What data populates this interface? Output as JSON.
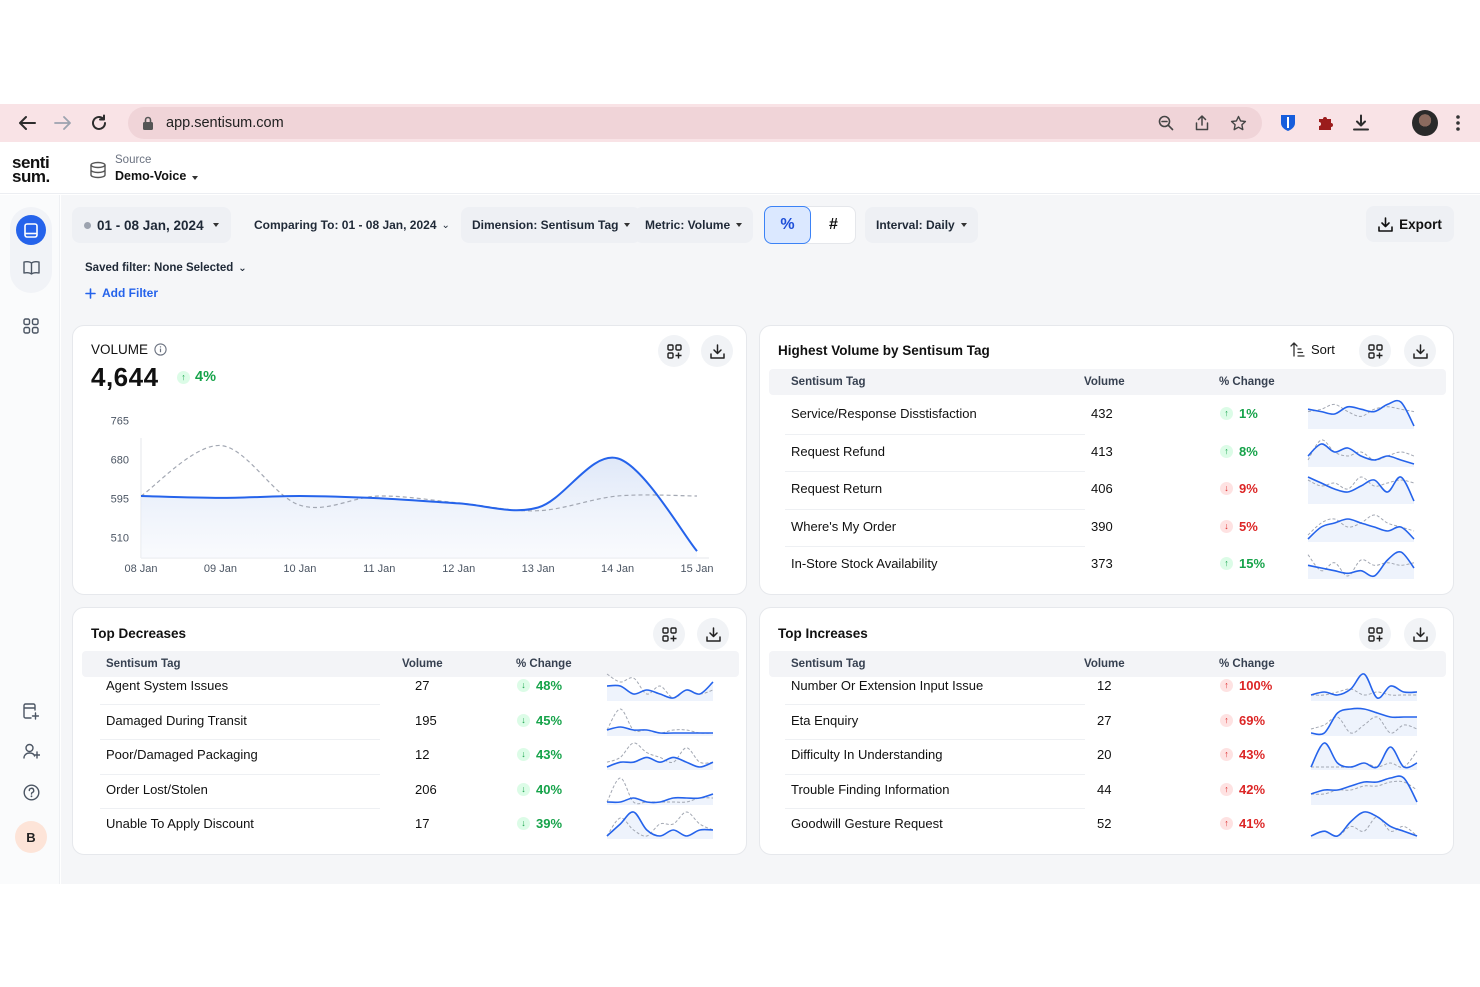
{
  "browser": {
    "url": "app.sentisum.com"
  },
  "app": {
    "logo_line1": "senti",
    "logo_line2": "sum.",
    "source_label": "Source",
    "source_value": "Demo-Voice",
    "user_initial": "B"
  },
  "filters": {
    "date_range": "01 - 08 Jan, 2024",
    "comparing": "Comparing To: 01 - 08 Jan, 2024",
    "dimension": "Dimension: Sentisum Tag",
    "metric": "Metric: Volume",
    "toggle_percent": "%",
    "toggle_count": "#",
    "interval": "Interval: Daily",
    "export": "Export",
    "saved_filter": "Saved filter: None Selected",
    "add_filter": "Add Filter"
  },
  "volume_card": {
    "label": "VOLUME",
    "value": "4,644",
    "change": "4%"
  },
  "chart_data": {
    "type": "line",
    "x": [
      "08 Jan",
      "09 Jan",
      "10 Jan",
      "11 Jan",
      "12 Jan",
      "13 Jan",
      "14 Jan",
      "15 Jan"
    ],
    "yticks": [
      510,
      595,
      680,
      765
    ],
    "ylim": [
      465,
      770
    ],
    "series": [
      {
        "values": [
          600,
          596,
          600,
          595,
          584,
          575,
          682,
          480
        ]
      },
      {
        "values": [
          600,
          710,
          580,
          600,
          585,
          568,
          600,
          600
        ]
      }
    ],
    "colors": {
      "current": "#2563eb",
      "previous": "#a3a8b3"
    }
  },
  "highest": {
    "title": "Highest Volume by Sentisum Tag",
    "sort_label": "Sort",
    "headers": {
      "tag": "Sentisum Tag",
      "volume": "Volume",
      "change": "% Change"
    },
    "rows": [
      {
        "tag": "Service/Response Disstisfaction",
        "volume": "432",
        "change": "1%",
        "dir": "up",
        "cur": [
          5,
          6,
          7,
          4,
          5,
          6,
          3,
          2,
          12
        ],
        "prev": [
          6,
          5,
          3,
          6,
          8,
          5,
          4,
          5,
          6
        ]
      },
      {
        "tag": "Request Refund",
        "volume": "413",
        "change": "8%",
        "dir": "up",
        "cur": [
          7,
          4,
          6,
          5,
          7,
          8,
          7,
          8,
          9
        ],
        "prev": [
          8,
          3,
          6,
          7,
          6,
          8,
          7,
          6,
          7
        ]
      },
      {
        "tag": "Request Return",
        "volume": "406",
        "change": "9%",
        "dir": "down",
        "cur": [
          4,
          6,
          8,
          9,
          7,
          5,
          9,
          4,
          12
        ],
        "prev": [
          5,
          7,
          6,
          8,
          4,
          7,
          6,
          5,
          6
        ]
      },
      {
        "tag": "Where's My Order",
        "volume": "390",
        "change": "5%",
        "dir": "down",
        "cur": [
          9,
          6,
          5,
          4,
          5,
          6,
          7,
          6,
          9
        ],
        "prev": [
          8,
          5,
          4,
          6,
          5,
          3,
          5,
          6,
          7
        ]
      },
      {
        "tag": "In-Store Stock Availability",
        "volume": "373",
        "change": "15%",
        "dir": "up",
        "cur": [
          8,
          9,
          10,
          11,
          10,
          12,
          6,
          3,
          9
        ],
        "prev": [
          4,
          10,
          7,
          12,
          6,
          8,
          7,
          8,
          7
        ]
      }
    ]
  },
  "decreases": {
    "title": "Top Decreases",
    "headers": {
      "tag": "Sentisum Tag",
      "volume": "Volume",
      "change": "% Change"
    },
    "rows": [
      {
        "tag": "Agent System Issues",
        "volume": "27",
        "change": "48%",
        "cur": [
          6,
          6,
          8,
          7,
          8,
          9,
          7,
          8,
          5
        ],
        "prev": [
          3,
          5,
          4,
          8,
          6,
          9,
          7,
          8,
          7
        ]
      },
      {
        "tag": "Damaged During Transit",
        "volume": "195",
        "change": "45%",
        "cur": [
          8,
          7,
          8,
          8,
          9,
          9,
          9,
          9,
          9
        ],
        "prev": [
          8,
          1,
          8,
          8,
          9,
          8,
          8,
          9,
          9
        ]
      },
      {
        "tag": "Poor/Damaged Packaging",
        "volume": "12",
        "change": "43%",
        "cur": [
          9,
          8,
          8,
          7,
          8,
          7,
          8,
          9,
          8
        ],
        "prev": [
          8,
          7,
          4,
          6,
          7,
          8,
          5,
          8,
          8
        ]
      },
      {
        "tag": "Order Lost/Stolen",
        "volume": "206",
        "change": "40%",
        "cur": [
          8,
          8,
          7,
          8,
          8,
          7,
          7,
          7,
          6
        ],
        "prev": [
          8,
          2,
          8,
          8,
          8,
          8,
          8,
          7,
          7
        ]
      },
      {
        "tag": "Unable To Apply Discount",
        "volume": "17",
        "change": "39%",
        "cur": [
          8,
          6,
          4,
          7,
          8,
          7,
          8,
          7,
          7
        ],
        "prev": [
          8,
          5,
          7,
          8,
          6,
          6,
          4,
          6,
          7
        ]
      }
    ]
  },
  "increases": {
    "title": "Top Increases",
    "headers": {
      "tag": "Sentisum Tag",
      "volume": "Volume",
      "change": "% Change"
    },
    "rows": [
      {
        "tag": "Number Or Extension Input Issue",
        "volume": "12",
        "change": "100%",
        "cur": [
          8,
          7,
          8,
          6,
          1,
          9,
          5,
          7,
          7
        ],
        "prev": [
          8,
          8,
          7,
          6,
          8,
          7,
          8,
          8,
          8
        ]
      },
      {
        "tag": "Eta Enquiry",
        "volume": "27",
        "change": "69%",
        "cur": [
          8,
          8,
          3,
          2,
          2,
          3,
          4,
          4,
          4
        ],
        "prev": [
          7,
          6,
          4,
          8,
          6,
          4,
          8,
          6,
          7
        ]
      },
      {
        "tag": "Difficulty In Understanding",
        "volume": "20",
        "change": "43%",
        "cur": [
          8,
          2,
          7,
          8,
          7,
          8,
          3,
          8,
          7
        ],
        "prev": [
          8,
          8,
          8,
          8,
          7,
          8,
          7,
          8,
          4
        ]
      },
      {
        "tag": "Trouble Finding Information",
        "volume": "44",
        "change": "42%",
        "cur": [
          7,
          6,
          6,
          5,
          4,
          4,
          3,
          3,
          9
        ],
        "prev": [
          7,
          7,
          6,
          6,
          5,
          5,
          4,
          4,
          6
        ]
      },
      {
        "tag": "Goodwill Gesture Request",
        "volume": "52",
        "change": "41%",
        "cur": [
          8,
          7,
          8,
          5,
          3,
          4,
          6,
          7,
          8
        ],
        "prev": [
          8,
          7,
          8,
          6,
          7,
          4,
          7,
          6,
          8
        ]
      }
    ]
  }
}
